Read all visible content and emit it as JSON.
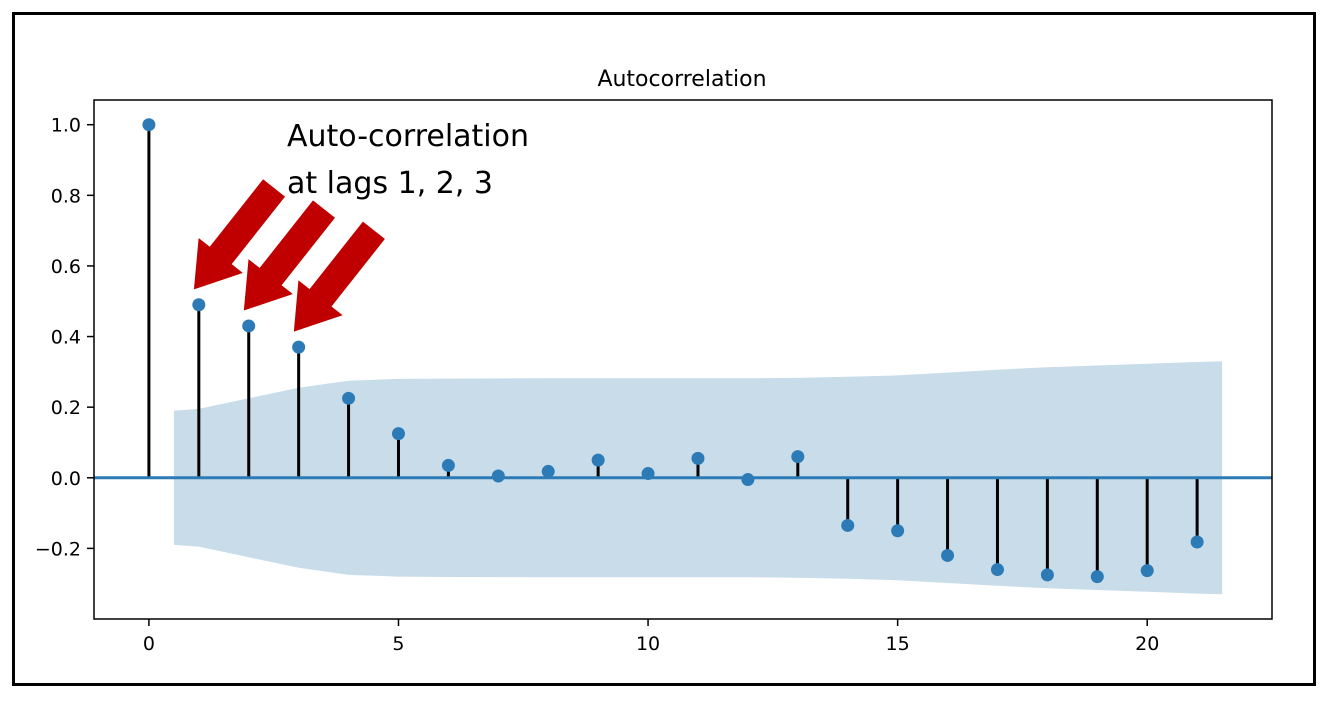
{
  "chart_data": {
    "type": "stem",
    "title": "Autocorrelation",
    "xlabel": "",
    "ylabel": "",
    "x_ticks": [
      "0",
      "5",
      "10",
      "15",
      "20"
    ],
    "y_ticks": [
      "1.0",
      "0.8",
      "0.6",
      "0.4",
      "0.2",
      "0.0",
      "−0.2"
    ],
    "xlim": [
      -1.1,
      22.5
    ],
    "ylim": [
      -0.4,
      1.07
    ],
    "lags": [
      0,
      1,
      2,
      3,
      4,
      5,
      6,
      7,
      8,
      9,
      10,
      11,
      12,
      13,
      14,
      15,
      16,
      17,
      18,
      19,
      20,
      21
    ],
    "values": [
      1.0,
      0.49,
      0.43,
      0.37,
      0.225,
      0.125,
      0.035,
      0.005,
      0.018,
      0.05,
      0.012,
      0.055,
      -0.005,
      0.06,
      -0.135,
      -0.15,
      -0.22,
      -0.26,
      -0.275,
      -0.28,
      -0.263,
      -0.182
    ],
    "confidence_interval": {
      "lags": [
        0.5,
        1,
        2,
        3,
        4,
        5,
        6,
        8,
        10,
        12,
        13,
        14,
        15,
        16,
        17,
        18,
        19,
        20,
        21,
        21.5
      ],
      "upper": [
        0.19,
        0.195,
        0.225,
        0.255,
        0.275,
        0.28,
        0.281,
        0.282,
        0.282,
        0.282,
        0.283,
        0.286,
        0.29,
        0.298,
        0.306,
        0.313,
        0.318,
        0.323,
        0.328,
        0.33
      ],
      "lower": [
        -0.19,
        -0.195,
        -0.225,
        -0.255,
        -0.275,
        -0.28,
        -0.281,
        -0.282,
        -0.282,
        -0.282,
        -0.283,
        -0.286,
        -0.29,
        -0.298,
        -0.306,
        -0.313,
        -0.318,
        -0.323,
        -0.328,
        -0.33
      ]
    },
    "grid": false,
    "colors": {
      "marker": "#2d7bb6",
      "stem": "#000000",
      "zero_line": "#2d7bb6",
      "confidence_band": "#c8dcea"
    },
    "annotation": {
      "lines": [
        "Auto-correlation",
        "at lags 1, 2, 3"
      ],
      "arrow_color": "#c00000",
      "arrow_targets": [
        1,
        2,
        3
      ]
    }
  }
}
